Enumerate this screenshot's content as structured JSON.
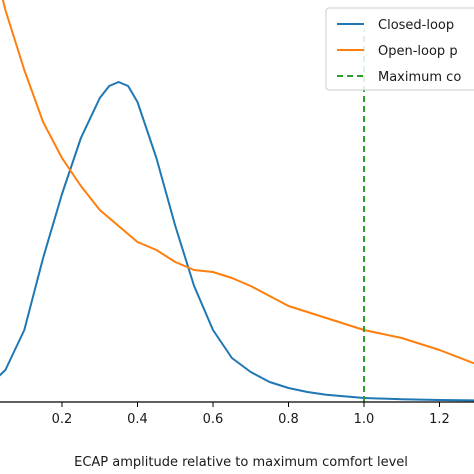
{
  "chart_data": {
    "type": "line",
    "xlabel": "ECAP amplitude relative to maximum comfort level",
    "ylabel": "",
    "xlim": [
      -0.02,
      1.31
    ],
    "ylim": [
      0,
      1.0
    ],
    "x_ticks": [
      0.2,
      0.4,
      0.6,
      0.8,
      1.0,
      1.2
    ],
    "x_tick_labels": [
      "0.2",
      "0.4",
      "0.6",
      "0.8",
      "1.0",
      "1.2"
    ],
    "grid": false,
    "legend": {
      "placement": "top-right",
      "entries": [
        "Closed-loop",
        "Open-loop p",
        "Maximum co"
      ]
    },
    "series": [
      {
        "name": "Closed-loop",
        "color": "#1f77b4",
        "style": "solid",
        "x": [
          -0.02,
          0.0,
          0.05,
          0.1,
          0.15,
          0.2,
          0.25,
          0.3,
          0.325,
          0.35,
          0.375,
          0.4,
          0.45,
          0.5,
          0.55,
          0.6,
          0.65,
          0.7,
          0.75,
          0.8,
          0.85,
          0.9,
          0.95,
          1.0,
          1.1,
          1.2,
          1.31
        ],
        "values": [
          0.02,
          0.035,
          0.08,
          0.18,
          0.36,
          0.52,
          0.66,
          0.76,
          0.79,
          0.8,
          0.79,
          0.75,
          0.61,
          0.44,
          0.29,
          0.18,
          0.11,
          0.075,
          0.05,
          0.035,
          0.025,
          0.018,
          0.014,
          0.01,
          0.007,
          0.005,
          0.004
        ]
      },
      {
        "name": "Open-loop p",
        "color": "#ff7f0e",
        "style": "solid",
        "x": [
          0.0,
          0.05,
          0.1,
          0.15,
          0.2,
          0.25,
          0.3,
          0.35,
          0.4,
          0.45,
          0.5,
          0.55,
          0.6,
          0.65,
          0.7,
          0.8,
          0.9,
          1.0,
          1.1,
          1.2,
          1.31
        ],
        "values": [
          1.17,
          0.98,
          0.83,
          0.7,
          0.61,
          0.54,
          0.48,
          0.44,
          0.4,
          0.38,
          0.35,
          0.33,
          0.325,
          0.31,
          0.29,
          0.24,
          0.21,
          0.18,
          0.16,
          0.13,
          0.09
        ]
      },
      {
        "name": "Maximum co",
        "color": "#2ca02c",
        "style": "dashed",
        "x": [
          1.0,
          1.0
        ],
        "values": [
          0.0,
          0.93
        ]
      }
    ]
  }
}
